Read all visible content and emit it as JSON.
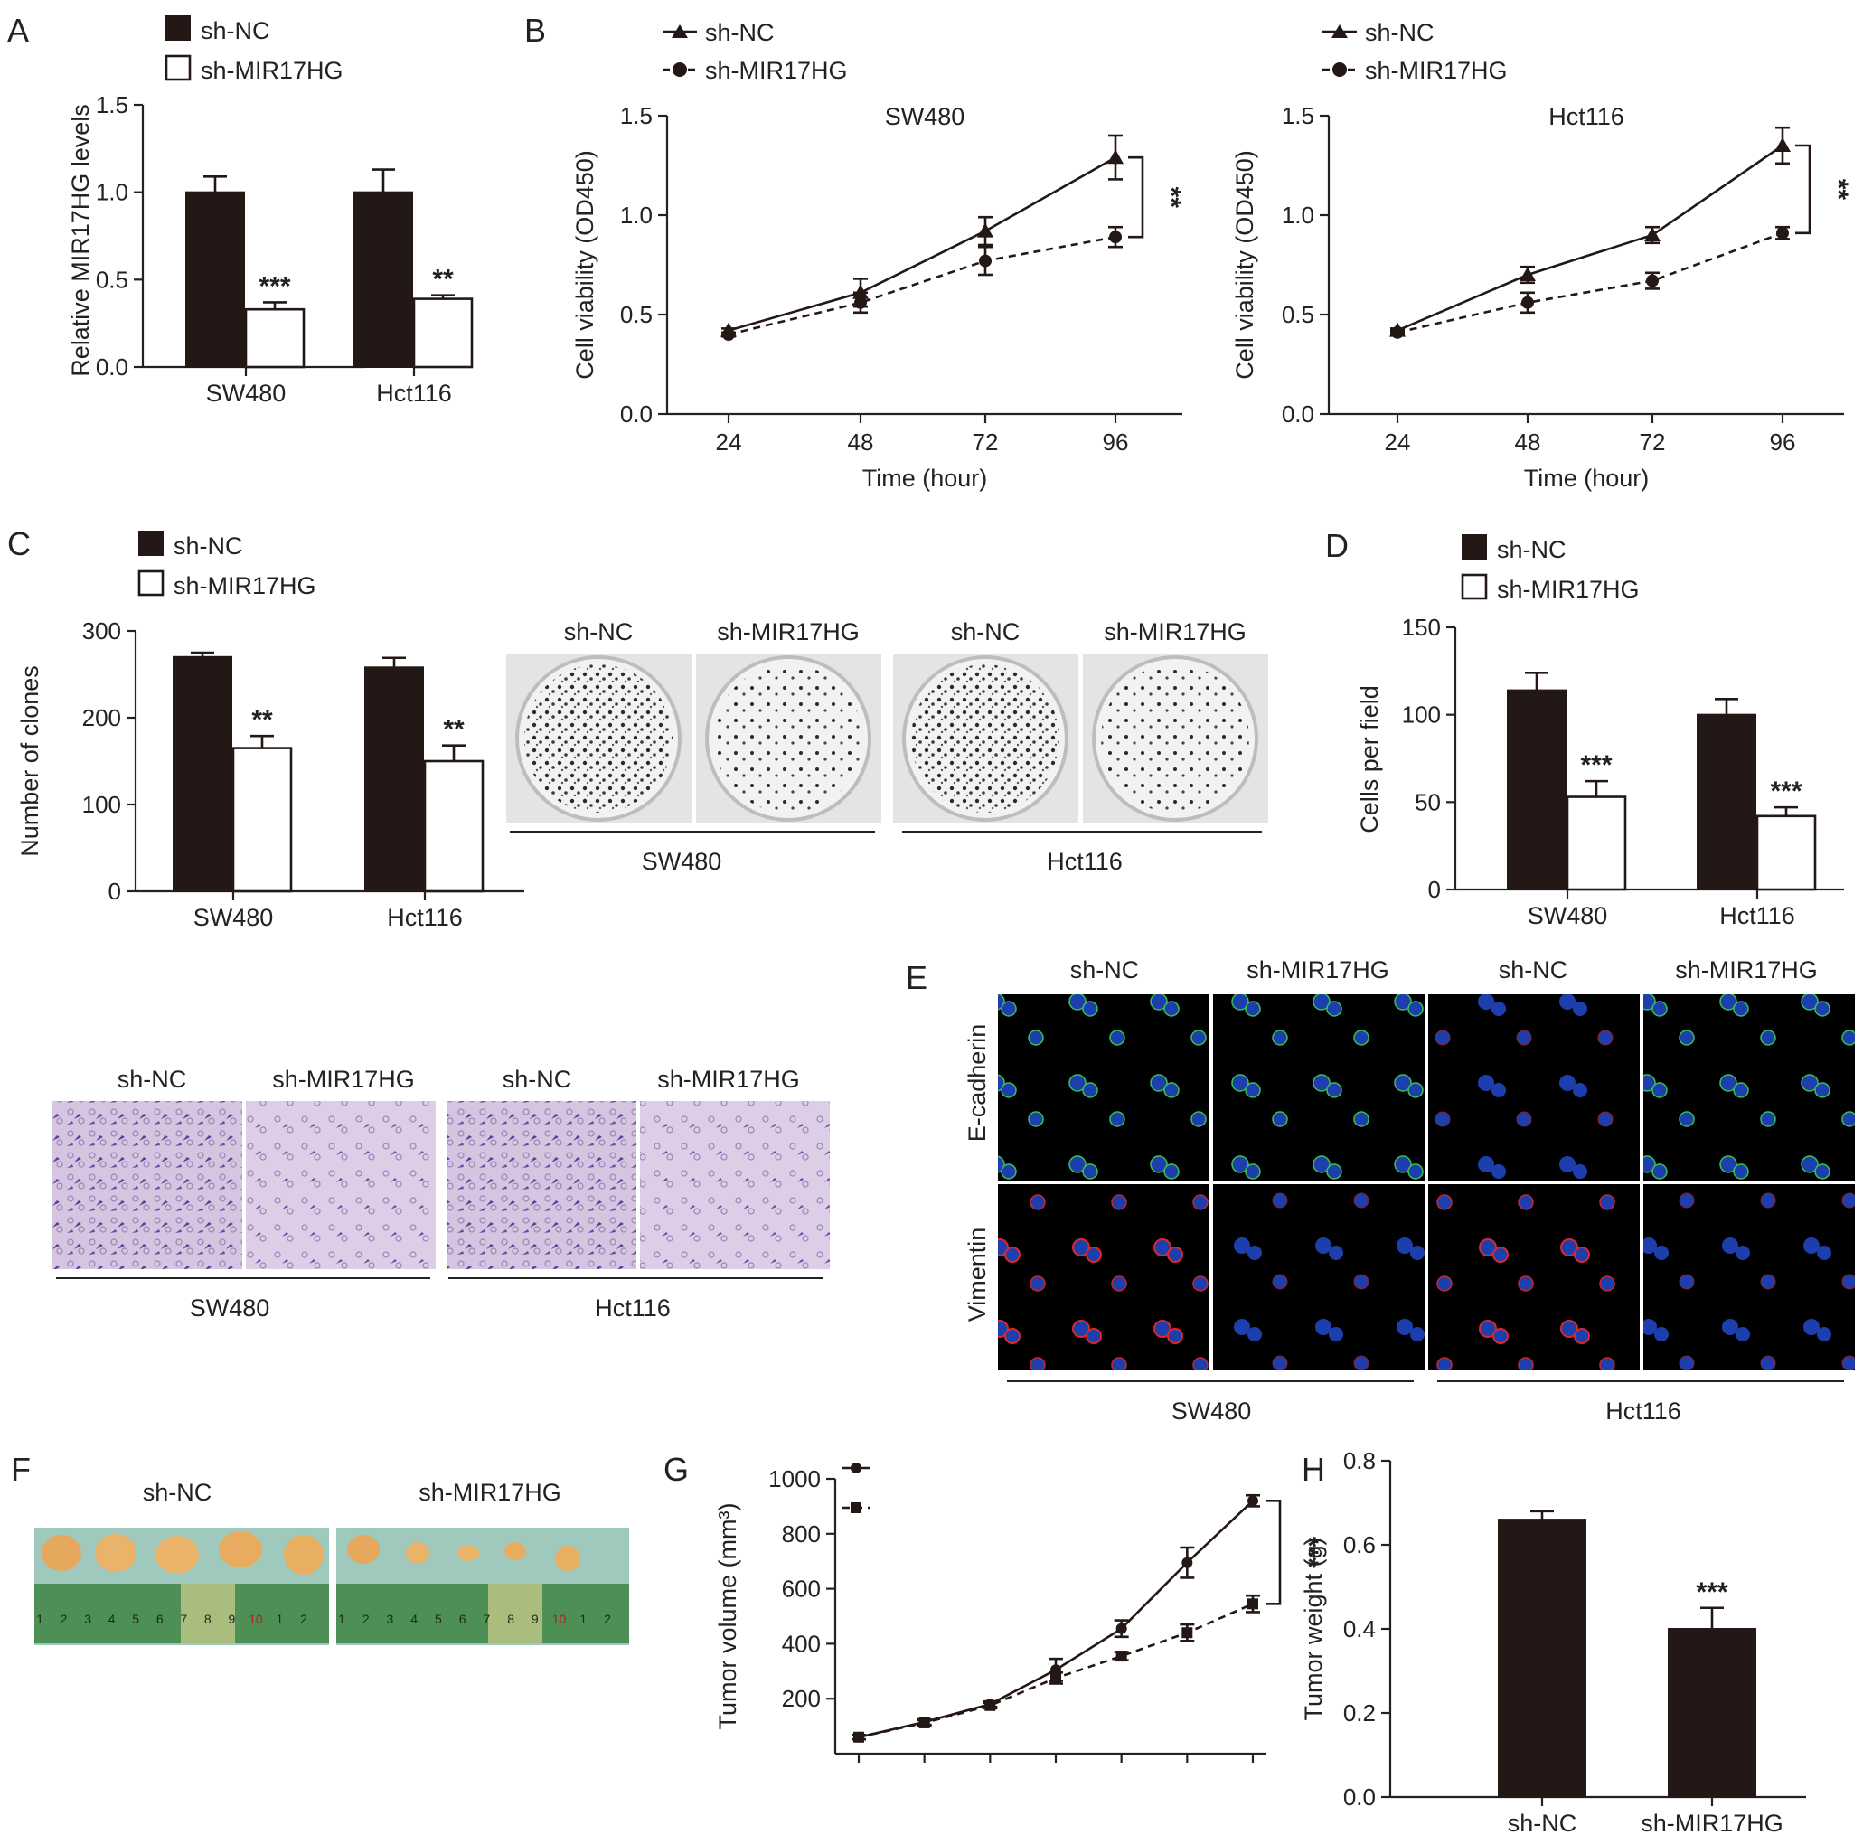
{
  "legend": {
    "nc": "sh-NC",
    "kd": "sh-MIR17HG"
  },
  "panels": {
    "a": {
      "letter": "A"
    },
    "b": {
      "letter": "B"
    },
    "c": {
      "letter": "C"
    },
    "d": {
      "letter": "D"
    },
    "e": {
      "letter": "E"
    },
    "f": {
      "letter": "F"
    },
    "g": {
      "letter": "G"
    },
    "h": {
      "letter": "H"
    }
  },
  "images": {
    "colony": {
      "col_labels": [
        "sh-NC",
        "sh-MIR17HG",
        "sh-NC",
        "sh-MIR17HG"
      ],
      "groups": [
        "SW480",
        "Hct116"
      ]
    },
    "transwell": {
      "col_labels": [
        "sh-NC",
        "sh-MIR17HG",
        "sh-NC",
        "sh-MIR17HG"
      ],
      "groups": [
        "SW480",
        "Hct116"
      ]
    },
    "if_stain": {
      "col_labels": [
        "sh-NC",
        "sh-MIR17HG",
        "sh-NC",
        "sh-MIR17HG"
      ],
      "row_labels": [
        "E-cadherin",
        "Vimentin"
      ],
      "groups": [
        "SW480",
        "Hct116"
      ]
    },
    "tumor": {
      "col_labels": [
        "sh-NC",
        "sh-MIR17HG"
      ],
      "ruler_numbers": [
        "1",
        "2",
        "3",
        "4",
        "5",
        "6",
        "7",
        "8",
        "9",
        "10",
        "1",
        "2"
      ]
    }
  },
  "chart_data": [
    {
      "id": "A",
      "type": "bar",
      "ylabel": "Relative MIR17HG levels",
      "xlabel": "",
      "categories": [
        "SW480",
        "Hct116"
      ],
      "ylim": [
        0,
        1.5
      ],
      "yticks": [
        "0.0",
        "0.5",
        "1.0",
        "1.5"
      ],
      "series": [
        {
          "name": "sh-NC",
          "values": [
            1.0,
            1.0
          ],
          "errors": [
            0.09,
            0.13
          ]
        },
        {
          "name": "sh-MIR17HG",
          "values": [
            0.33,
            0.39
          ],
          "errors": [
            0.04,
            0.02
          ]
        }
      ],
      "significance": [
        "***",
        "**"
      ]
    },
    {
      "id": "B1",
      "type": "line",
      "title": "SW480",
      "xlabel": "Time (hour)",
      "ylabel": "Cell viability (OD450)",
      "x": [
        24,
        48,
        72,
        96
      ],
      "xticks": [
        "24",
        "48",
        "72",
        "96"
      ],
      "ylim": [
        0,
        1.5
      ],
      "yticks": [
        "0.0",
        "0.5",
        "1.0",
        "1.5"
      ],
      "series": [
        {
          "name": "sh-NC",
          "values": [
            0.42,
            0.61,
            0.92,
            1.29
          ],
          "errors": [
            0.01,
            0.07,
            0.07,
            0.11
          ]
        },
        {
          "name": "sh-MIR17HG",
          "values": [
            0.4,
            0.56,
            0.77,
            0.89
          ],
          "errors": [
            0.01,
            0.05,
            0.07,
            0.05
          ]
        }
      ],
      "significance": "**"
    },
    {
      "id": "B2",
      "type": "line",
      "title": "Hct116",
      "xlabel": "Time (hour)",
      "ylabel": "Cell viability (OD450)",
      "x": [
        24,
        48,
        72,
        96
      ],
      "xticks": [
        "24",
        "48",
        "72",
        "96"
      ],
      "ylim": [
        0,
        1.5
      ],
      "yticks": [
        "0.0",
        "0.5",
        "1.0",
        "1.5"
      ],
      "series": [
        {
          "name": "sh-NC",
          "values": [
            0.42,
            0.7,
            0.9,
            1.35
          ],
          "errors": [
            0.01,
            0.04,
            0.04,
            0.09
          ]
        },
        {
          "name": "sh-MIR17HG",
          "values": [
            0.41,
            0.56,
            0.67,
            0.91
          ],
          "errors": [
            0.01,
            0.05,
            0.04,
            0.03
          ]
        }
      ],
      "significance": "**"
    },
    {
      "id": "C",
      "type": "bar",
      "ylabel": "Number of clones",
      "xlabel": "",
      "categories": [
        "SW480",
        "Hct116"
      ],
      "ylim": [
        0,
        300
      ],
      "yticks": [
        "0",
        "100",
        "200",
        "300"
      ],
      "series": [
        {
          "name": "sh-NC",
          "values": [
            270,
            258
          ],
          "errors": [
            5,
            11
          ]
        },
        {
          "name": "sh-MIR17HG",
          "values": [
            165,
            150
          ],
          "errors": [
            14,
            18
          ]
        }
      ],
      "significance": [
        "**",
        "**"
      ]
    },
    {
      "id": "D",
      "type": "bar",
      "ylabel": "Cells per field",
      "xlabel": "",
      "categories": [
        "SW480",
        "Hct116"
      ],
      "ylim": [
        0,
        150
      ],
      "yticks": [
        "0",
        "50",
        "100",
        "150"
      ],
      "series": [
        {
          "name": "sh-NC",
          "values": [
            114,
            100
          ],
          "errors": [
            10,
            9
          ]
        },
        {
          "name": "sh-MIR17HG",
          "values": [
            53,
            42
          ],
          "errors": [
            9,
            5
          ]
        }
      ],
      "significance": [
        "***",
        "***"
      ]
    },
    {
      "id": "G",
      "type": "line",
      "ylabel": "Tumor volume (mm³)",
      "xlabel": "",
      "points": 7,
      "ylim": [
        0,
        1000
      ],
      "yticks": [
        "200",
        "400",
        "600",
        "800",
        "1000"
      ],
      "series": [
        {
          "values": [
            60,
            115,
            180,
            305,
            455,
            695,
            920
          ],
          "errors": [
            8,
            10,
            10,
            40,
            30,
            55,
            20
          ]
        },
        {
          "values": [
            60,
            112,
            175,
            275,
            355,
            440,
            545
          ],
          "errors": [
            8,
            10,
            10,
            20,
            15,
            30,
            30
          ]
        }
      ],
      "significance": "***"
    },
    {
      "id": "H",
      "type": "bar",
      "ylabel": "Tumor weight (g)",
      "xlabel": "",
      "categories": [
        "sh-NC",
        "sh-MIR17HG"
      ],
      "ylim": [
        0,
        0.8
      ],
      "yticks": [
        "0.0",
        "0.2",
        "0.4",
        "0.6",
        "0.8"
      ],
      "series": [
        {
          "name": "weight",
          "values": [
            0.66,
            0.4
          ],
          "errors": [
            0.02,
            0.05
          ]
        }
      ],
      "significance": [
        "",
        "***"
      ]
    }
  ]
}
